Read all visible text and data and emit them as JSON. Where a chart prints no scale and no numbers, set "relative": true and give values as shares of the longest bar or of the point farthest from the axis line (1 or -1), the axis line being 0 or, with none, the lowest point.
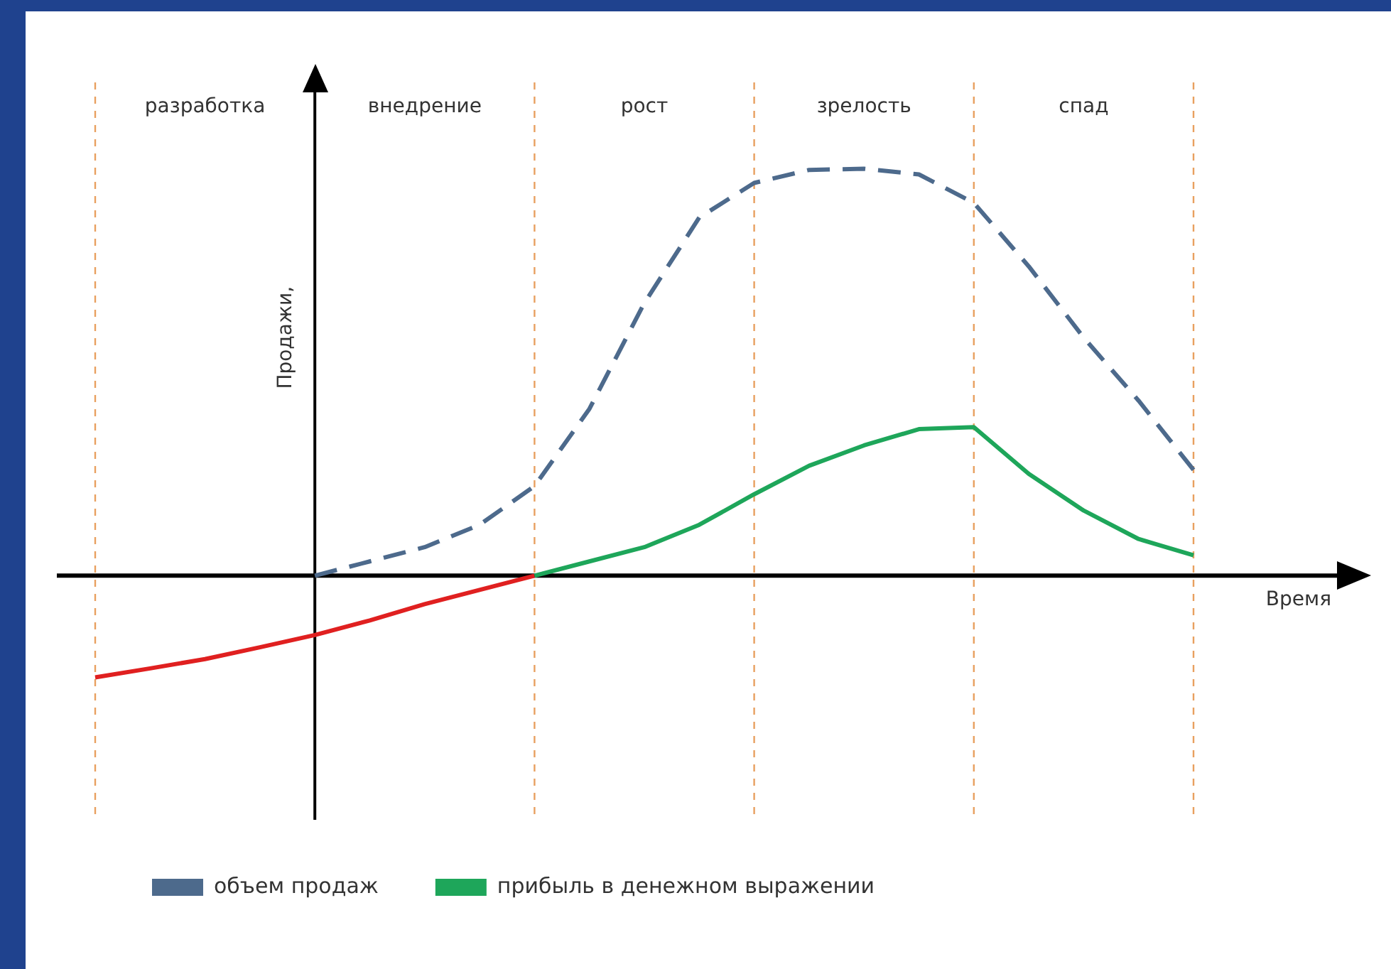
{
  "chart_data": {
    "type": "line",
    "relative": true,
    "xlabel": "Время",
    "ylabel": "Продажи,",
    "legend": "bottom left",
    "grid": "x",
    "categories": [
      null,
      null,
      "разработка",
      null,
      null,
      null,
      "внедрение",
      null,
      null,
      null,
      "рост",
      null,
      null,
      null,
      "зрелость",
      null,
      null,
      null,
      "спад",
      null,
      null
    ],
    "series": [
      {
        "name": "объем продаж",
        "color": "#4d6a8c",
        "line_style": "dashed",
        "values": [
          null,
          null,
          null,
          null,
          0,
          0.035,
          0.07,
          0.125,
          0.22,
          0.41,
          0.67,
          0.88,
          0.965,
          0.997,
          1,
          0.986,
          0.916,
          0.76,
          0.585,
          0.43,
          0.26
        ]
      },
      {
        "name": "прибыль в денежном выражении",
        "color": "#1ea65a",
        "values": [
          null,
          null,
          null,
          null,
          null,
          null,
          null,
          null,
          0,
          0.035,
          0.07,
          0.125,
          0.2,
          0.27,
          0.32,
          0.36,
          0.365,
          0.25,
          0.16,
          0.09,
          0.05
        ]
      },
      {
        "color": "#e02020",
        "values": [
          -0.25,
          -0.228,
          -0.205,
          -0.176,
          -0.146,
          -0.11,
          -0.07,
          -0.035,
          0,
          null,
          null,
          null,
          null,
          null,
          null,
          null,
          null,
          null,
          null,
          null,
          null
        ]
      }
    ]
  }
}
